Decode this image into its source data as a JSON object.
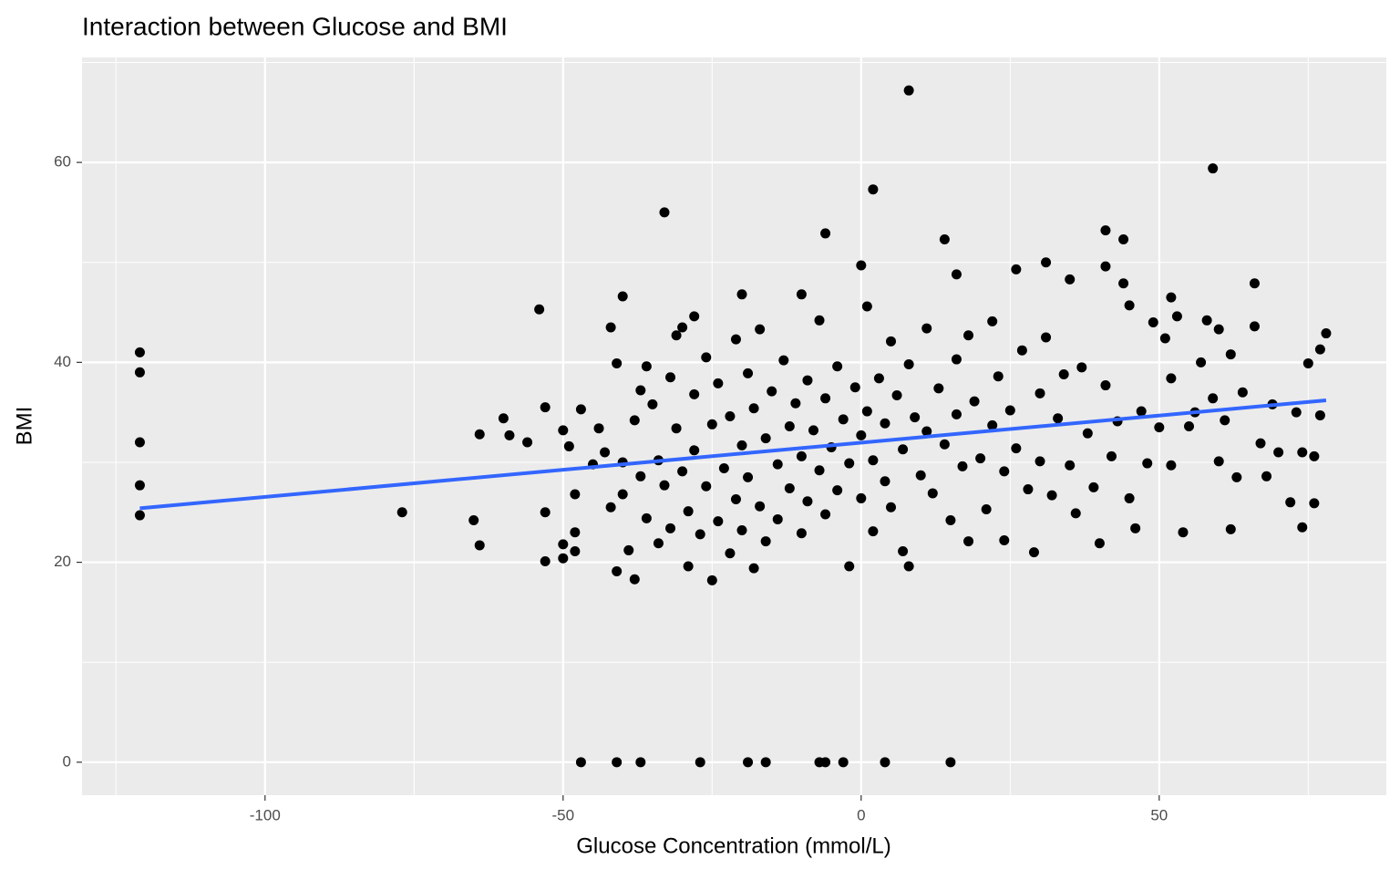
{
  "chart_data": {
    "type": "scatter",
    "title": "Interaction between Glucose and BMI",
    "x_label": "Glucose Concentration (mmol/L)",
    "y_label": "BMI",
    "xlim": [
      -130.7,
      88.1
    ],
    "ylim": [
      -3.3,
      70.5
    ],
    "xticks": [
      -100,
      -50,
      0,
      50
    ],
    "yticks": [
      0,
      20,
      40,
      60
    ],
    "grid": true,
    "series": [
      {
        "color": "#000000",
        "x": [
          -121,
          -121,
          -121,
          -121,
          -121,
          -77,
          -65,
          -64,
          -64,
          -60,
          -59,
          -56,
          -54,
          -53,
          -53,
          -53,
          -50,
          -50,
          -50,
          -49,
          -48,
          -48,
          -48,
          -47,
          -47,
          -41,
          -37,
          -27,
          -19,
          -16,
          -7,
          -6,
          -3,
          4,
          15,
          8,
          2,
          -33,
          59,
          -6,
          14,
          41,
          44,
          31,
          41,
          0,
          16,
          26,
          66,
          -40,
          -20,
          -10,
          52,
          -42,
          -30,
          -28,
          60,
          78,
          45,
          35,
          -45,
          -44,
          -43,
          -42,
          -41,
          -41,
          -40,
          -40,
          -39,
          -38,
          -38,
          -37,
          -37,
          -36,
          -36,
          -35,
          -34,
          -34,
          -33,
          -32,
          -32,
          -31,
          -31,
          -30,
          -29,
          -29,
          -28,
          -28,
          -27,
          -26,
          -26,
          -25,
          -25,
          -24,
          -24,
          -23,
          -22,
          -22,
          -21,
          -21,
          -20,
          -20,
          -19,
          -19,
          -18,
          -18,
          -17,
          -17,
          -16,
          -16,
          -15,
          -14,
          -14,
          -13,
          -12,
          -12,
          -11,
          -10,
          -10,
          -9,
          -9,
          -8,
          -7,
          -7,
          -6,
          -6,
          -5,
          -4,
          -4,
          -3,
          -2,
          -2,
          -1,
          0,
          0,
          1,
          1,
          2,
          2,
          3,
          4,
          4,
          5,
          5,
          6,
          7,
          7,
          8,
          8,
          9,
          10,
          11,
          11,
          12,
          13,
          14,
          15,
          16,
          16,
          17,
          18,
          18,
          19,
          20,
          21,
          22,
          22,
          23,
          24,
          24,
          25,
          26,
          27,
          28,
          29,
          30,
          30,
          31,
          32,
          33,
          34,
          35,
          36,
          37,
          38,
          39,
          40,
          41,
          42,
          43,
          44,
          45,
          46,
          47,
          48,
          49,
          50,
          51,
          52,
          52,
          53,
          54,
          55,
          56,
          57,
          58,
          59,
          60,
          61,
          62,
          62,
          63,
          64,
          66,
          67,
          68,
          69,
          70,
          72,
          73,
          74,
          74,
          75,
          76,
          76,
          77,
          77
        ],
        "values": [
          41,
          39,
          32,
          27.7,
          24.7,
          25,
          24.2,
          32.8,
          21.7,
          34.4,
          32.7,
          32,
          45.3,
          35.5,
          25,
          20.1,
          33.2,
          21.8,
          20.4,
          31.6,
          26.8,
          23,
          21.1,
          35.3,
          0,
          0,
          0,
          0,
          0,
          0,
          0,
          0,
          0,
          0,
          0,
          67.2,
          57.3,
          55,
          59.4,
          52.9,
          52.3,
          53.2,
          52.3,
          50,
          49.6,
          49.7,
          48.8,
          49.3,
          47.9,
          46.6,
          46.8,
          46.8,
          46.5,
          43.5,
          43.5,
          44.6,
          43.3,
          42.9,
          45.7,
          48.3,
          29.8,
          33.4,
          31,
          25.5,
          39.9,
          19.1,
          30,
          26.8,
          21.2,
          18.3,
          34.2,
          37.2,
          28.6,
          39.6,
          24.4,
          35.8,
          21.9,
          30.2,
          27.7,
          38.5,
          23.4,
          42.7,
          33.4,
          29.1,
          25.1,
          19.6,
          36.8,
          31.2,
          22.8,
          40.5,
          27.6,
          33.8,
          18.2,
          37.9,
          24.1,
          29.4,
          34.6,
          20.9,
          42.3,
          26.3,
          31.7,
          23.2,
          38.9,
          28.5,
          35.4,
          19.4,
          43.3,
          25.6,
          32.4,
          22.1,
          37.1,
          29.8,
          24.3,
          40.2,
          33.6,
          27.4,
          35.9,
          30.6,
          22.9,
          38.2,
          26.1,
          33.2,
          44.2,
          29.2,
          36.4,
          24.8,
          31.5,
          39.6,
          27.2,
          34.3,
          19.6,
          29.9,
          37.5,
          32.7,
          26.4,
          45.6,
          35.1,
          30.2,
          23.1,
          38.4,
          33.9,
          28.1,
          42.1,
          25.5,
          36.7,
          31.3,
          21.1,
          39.8,
          19.6,
          34.5,
          28.7,
          43.4,
          33.1,
          26.9,
          37.4,
          31.8,
          24.2,
          40.3,
          34.8,
          29.6,
          42.7,
          22.1,
          36.1,
          30.4,
          25.3,
          44.1,
          33.7,
          38.6,
          29.1,
          22.2,
          35.2,
          31.4,
          41.2,
          27.3,
          21,
          36.9,
          30.1,
          42.5,
          26.7,
          34.4,
          38.8,
          29.7,
          24.9,
          39.5,
          32.9,
          27.5,
          21.9,
          37.7,
          30.6,
          34.1,
          47.9,
          26.4,
          23.4,
          35.1,
          29.9,
          44,
          33.5,
          42.4,
          38.4,
          29.7,
          44.6,
          23,
          33.6,
          35,
          40,
          44.2,
          36.4,
          30.1,
          34.2,
          40.8,
          23.3,
          28.5,
          37,
          43.6,
          31.9,
          28.6,
          35.8,
          31,
          26,
          35,
          23.5,
          31,
          39.9,
          25.9,
          30.6,
          41.3,
          34.7
        ]
      }
    ],
    "trend": {
      "color": "#3366ff",
      "x": [
        -121,
        78
      ],
      "values": [
        25.4,
        36.2
      ]
    }
  }
}
